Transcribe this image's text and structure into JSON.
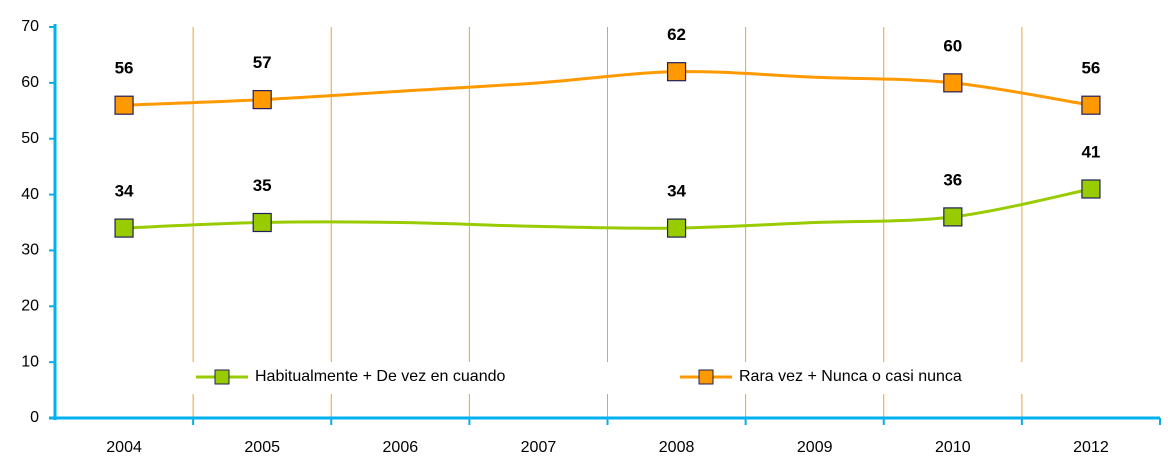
{
  "chart_data": {
    "type": "line",
    "categories": [
      "2004",
      "2005",
      "2006",
      "2007",
      "2008",
      "2009",
      "2010",
      "2012"
    ],
    "series": [
      {
        "name": "Habitualmente + De vez en cuando",
        "color": "#99cc00",
        "values": [
          34,
          35,
          35,
          34.3,
          34,
          35,
          36,
          41
        ],
        "value_labels": [
          "34",
          "35",
          null,
          null,
          "34",
          null,
          "36",
          "41"
        ]
      },
      {
        "name": "Rara vez + Nunca o casi nunca",
        "color": "#ff9900",
        "values": [
          56,
          57,
          58.5,
          60,
          62,
          61,
          60,
          56
        ],
        "value_labels": [
          "56",
          "57",
          null,
          null,
          "62",
          null,
          "60",
          "56"
        ]
      }
    ],
    "ylim": [
      0,
      70
    ],
    "yticks": [
      0,
      10,
      20,
      30,
      40,
      50,
      60,
      70
    ]
  }
}
